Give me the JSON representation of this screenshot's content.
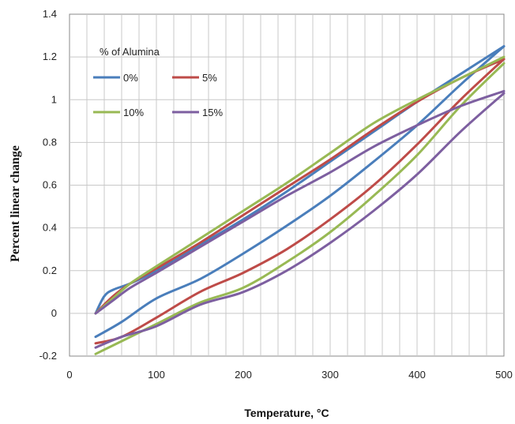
{
  "chart_data": {
    "type": "line",
    "title": "",
    "xlabel": "Temperature, °C",
    "ylabel": "Percent linear change",
    "xlim": [
      0,
      500
    ],
    "ylim": [
      -0.2,
      1.4
    ],
    "xticks": [
      "0",
      "100",
      "200",
      "300",
      "400",
      "500"
    ],
    "yticks": [
      "-0.2",
      "0",
      "0.2",
      "0.4",
      "0.6",
      "0.8",
      "1",
      "1.2",
      "1.4"
    ],
    "grid": true,
    "legend": {
      "title": "% of Alumina",
      "position": "top-left"
    },
    "series": [
      {
        "name": "0%",
        "color": "#4a7ebb",
        "heating": {
          "x": [
            30,
            40,
            50,
            70,
            100,
            150,
            200,
            250,
            300,
            350,
            400,
            450,
            500
          ],
          "y": [
            0,
            0.08,
            0.11,
            0.14,
            0.2,
            0.32,
            0.44,
            0.57,
            0.71,
            0.85,
            0.99,
            1.12,
            1.25
          ]
        },
        "cooling": {
          "x": [
            500,
            450,
            400,
            350,
            300,
            250,
            200,
            150,
            100,
            60,
            30
          ],
          "y": [
            1.25,
            1.07,
            0.88,
            0.71,
            0.55,
            0.41,
            0.28,
            0.16,
            0.07,
            -0.04,
            -0.11
          ]
        }
      },
      {
        "name": "5%",
        "color": "#be4b48",
        "heating": {
          "x": [
            30,
            50,
            70,
            100,
            150,
            200,
            250,
            300,
            350,
            400,
            450,
            500
          ],
          "y": [
            0,
            0.08,
            0.14,
            0.21,
            0.33,
            0.46,
            0.59,
            0.72,
            0.86,
            0.99,
            1.1,
            1.19
          ]
        },
        "cooling": {
          "x": [
            500,
            450,
            400,
            350,
            300,
            250,
            200,
            150,
            100,
            60,
            30
          ],
          "y": [
            1.19,
            1.0,
            0.79,
            0.6,
            0.44,
            0.3,
            0.19,
            0.1,
            -0.02,
            -0.11,
            -0.14
          ]
        }
      },
      {
        "name": "10%",
        "color": "#98b954",
        "heating": {
          "x": [
            30,
            50,
            70,
            100,
            150,
            200,
            250,
            300,
            350,
            400,
            450,
            500
          ],
          "y": [
            0,
            0.07,
            0.14,
            0.22,
            0.35,
            0.48,
            0.61,
            0.75,
            0.89,
            1.0,
            1.1,
            1.2
          ]
        },
        "cooling": {
          "x": [
            500,
            450,
            400,
            350,
            300,
            250,
            200,
            150,
            100,
            60,
            30
          ],
          "y": [
            1.17,
            0.97,
            0.74,
            0.55,
            0.38,
            0.24,
            0.12,
            0.05,
            -0.05,
            -0.13,
            -0.19
          ]
        }
      },
      {
        "name": "15%",
        "color": "#7d5fa0",
        "heating": {
          "x": [
            30,
            50,
            70,
            100,
            150,
            200,
            250,
            300,
            350,
            400,
            450,
            500
          ],
          "y": [
            0,
            0.06,
            0.12,
            0.19,
            0.31,
            0.43,
            0.55,
            0.66,
            0.78,
            0.88,
            0.97,
            1.04
          ]
        },
        "cooling": {
          "x": [
            500,
            450,
            400,
            350,
            300,
            250,
            200,
            150,
            100,
            60,
            30
          ],
          "y": [
            1.03,
            0.85,
            0.65,
            0.48,
            0.33,
            0.2,
            0.1,
            0.04,
            -0.06,
            -0.11,
            -0.16
          ]
        }
      }
    ]
  }
}
